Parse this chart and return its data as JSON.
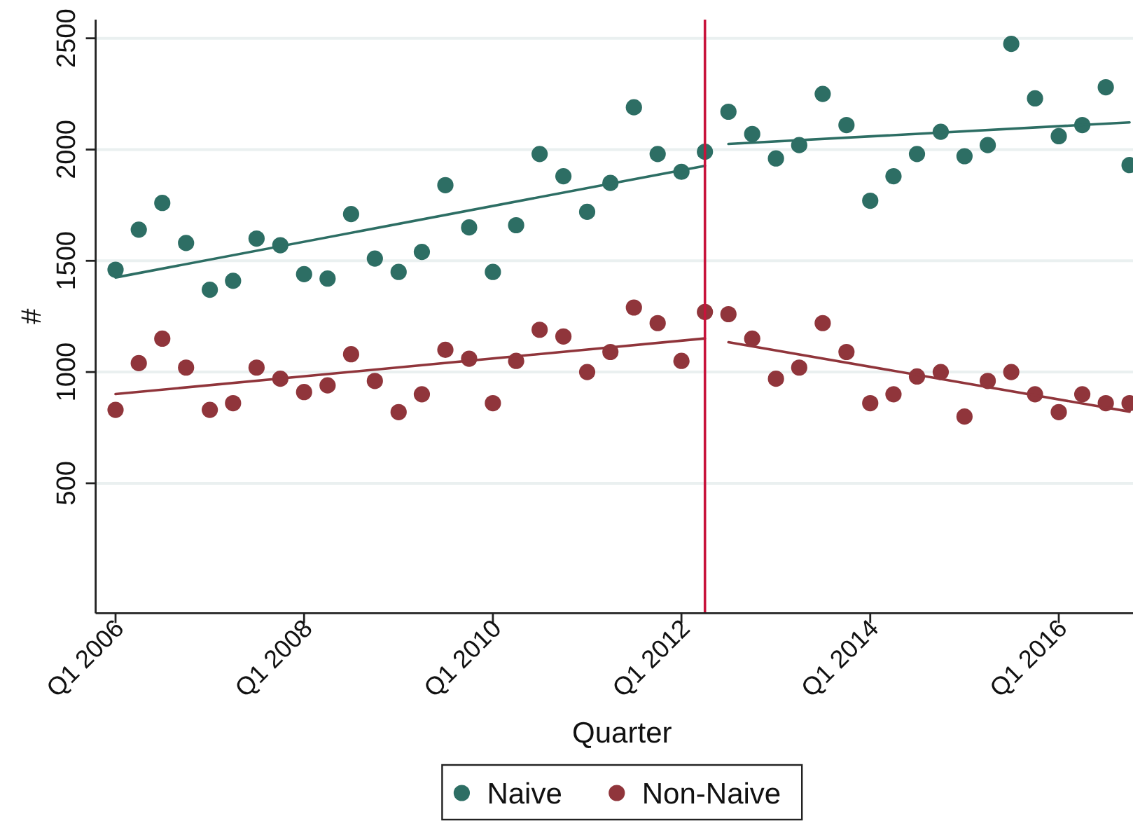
{
  "chart_data": {
    "type": "scatter",
    "xlabel": "Quarter",
    "ylabel": "#",
    "x": [
      "2006-01",
      "2006-04",
      "2006-07",
      "2006-10",
      "2007-01",
      "2007-04",
      "2007-07",
      "2007-10",
      "2008-01",
      "2008-04",
      "2008-07",
      "2008-10",
      "2009-01",
      "2009-04",
      "2009-07",
      "2009-10",
      "2010-01",
      "2010-04",
      "2010-07",
      "2010-10",
      "2011-01",
      "2011-04",
      "2011-07",
      "2011-10",
      "2012-01",
      "2012-04",
      "2012-07",
      "2012-10",
      "2013-01",
      "2013-04",
      "2013-07",
      "2013-10",
      "2014-01",
      "2014-04",
      "2014-07",
      "2014-10",
      "2015-01",
      "2015-04",
      "2015-07",
      "2015-10",
      "2016-01",
      "2016-04",
      "2016-07",
      "2016-10"
    ],
    "series": [
      {
        "name": "Naive",
        "color": "#2d6e64",
        "values": [
          1460,
          1640,
          1760,
          1580,
          1370,
          1410,
          1600,
          1570,
          1440,
          1420,
          1710,
          1510,
          1450,
          1540,
          1840,
          1650,
          1450,
          1660,
          1980,
          1880,
          1720,
          1850,
          2190,
          1980,
          1900,
          1990,
          2170,
          2070,
          1960,
          2020,
          2250,
          2110,
          1770,
          1880,
          1980,
          2080,
          1970,
          2020,
          2475,
          2230,
          2060,
          2110,
          2280,
          1930
        ]
      },
      {
        "name": "Non-Naive",
        "color": "#90353b",
        "values": [
          830,
          1040,
          1150,
          1020,
          830,
          860,
          1020,
          970,
          910,
          940,
          1080,
          960,
          820,
          900,
          1100,
          1060,
          860,
          1050,
          1190,
          1160,
          1000,
          1090,
          1290,
          1220,
          1050,
          1270,
          1260,
          1150,
          970,
          1020,
          1220,
          1090,
          860,
          900,
          980,
          1000,
          800,
          960,
          1000,
          900,
          820,
          900,
          860,
          860
        ]
      },
      {
        "type": "line",
        "marker": "none",
        "color": "#2d6e64",
        "x": [
          "2006-01",
          "2012-04"
        ],
        "values": [
          1425,
          1927
        ]
      },
      {
        "type": "line",
        "marker": "none",
        "color": "#2d6e64",
        "x": [
          "2012-07",
          "2016-10"
        ],
        "values": [
          2025,
          2122
        ]
      },
      {
        "type": "line",
        "marker": "none",
        "color": "#90353b",
        "x": [
          "2006-01",
          "2012-04"
        ],
        "values": [
          901,
          1151
        ]
      },
      {
        "type": "line",
        "marker": "none",
        "color": "#90353b",
        "x": [
          "2012-07",
          "2016-10"
        ],
        "values": [
          1134,
          822
        ]
      }
    ],
    "xlim": [
      "2005-10-16",
      "2016-12-13"
    ],
    "ylim": [
      -84,
      2584
    ],
    "xticks": [
      {
        "value": "2006-01",
        "label": "Q1 2006"
      },
      {
        "value": "2008-01",
        "label": "Q1 2008"
      },
      {
        "value": "2010-01",
        "label": "Q1 2010"
      },
      {
        "value": "2012-01",
        "label": "Q1 2012"
      },
      {
        "value": "2014-01",
        "label": "Q1 2014"
      },
      {
        "value": "2016-01",
        "label": "Q1 2016"
      }
    ],
    "yticks": [
      500,
      1000,
      1500,
      2000,
      2500
    ],
    "ref_lines": [
      {
        "axis": "x",
        "value": "2012-04",
        "color": "#c8143c"
      }
    ],
    "grid": "y",
    "legend": "bottom",
    "marker": "circle"
  }
}
